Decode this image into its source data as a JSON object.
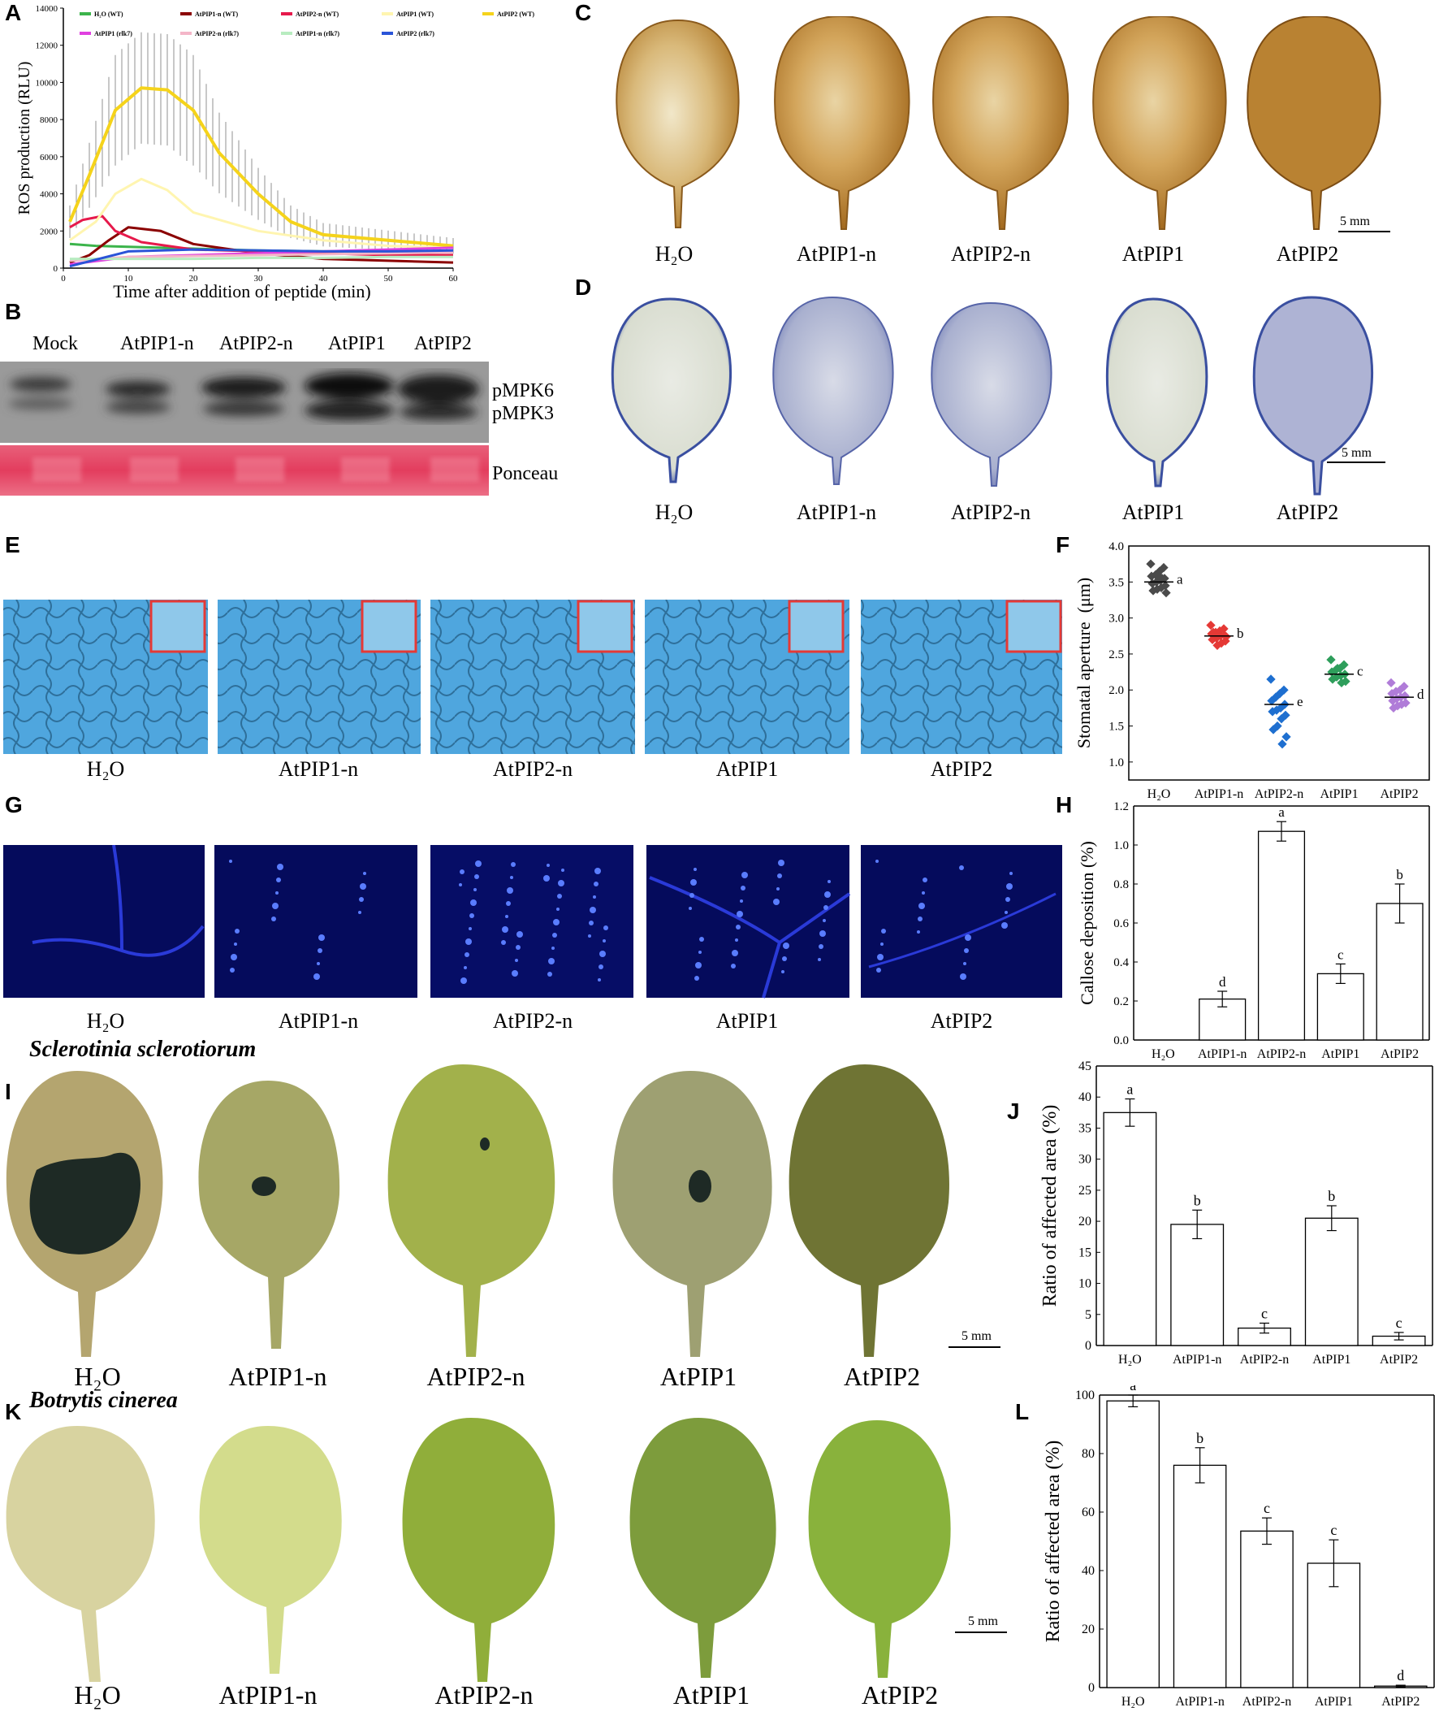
{
  "panels": {
    "A": "A",
    "B": "B",
    "C": "C",
    "D": "D",
    "E": "E",
    "F": "F",
    "G": "G",
    "H": "H",
    "I": "I",
    "J": "J",
    "K": "K",
    "L": "L"
  },
  "treatments": [
    "H₂O",
    "AtPIP1-n",
    "AtPIP2-n",
    "AtPIP1",
    "AtPIP2"
  ],
  "scale_bar": "5 mm",
  "blot": {
    "lanes": [
      "Mock",
      "AtPIP1-n",
      "AtPIP2-n",
      "AtPIP1",
      "AtPIP2"
    ],
    "band_labels": [
      "pMPK6",
      "pMPK3"
    ],
    "loading_label": "Ponceau"
  },
  "species": {
    "sclerotinia": "Sclerotinia  sclerotiorum",
    "botrytis": "Botrytis cinerea"
  },
  "colors": {
    "h2o_wt": "#3cb44b",
    "pip1n_wt": "#8b0000",
    "pip2n_wt": "#e6194b",
    "pip1_wt": "#fff5b0",
    "pip2_wt": "#f5d31b",
    "pip1_rlk7": "#e040e0",
    "pip2n_rlk7": "#f4b6c8",
    "pip1n_rlk7": "#b8ecc0",
    "pip2_rlk7": "#2a54d8",
    "microscope_blue": "#4fa6de",
    "fluor_blue": "#050b5c",
    "dab_brown": "#b07a2a",
    "trypan_blue": "#3a4fa0"
  },
  "chart_data": [
    {
      "id": "A",
      "type": "line",
      "ylabel": "ROS production (RLU)",
      "xlabel": "Time after addition of peptide (min)",
      "xlim": [
        0,
        60
      ],
      "ylim": [
        0,
        14000
      ],
      "xticks": [
        0,
        10,
        20,
        30,
        40,
        50,
        60
      ],
      "yticks": [
        0,
        2000,
        4000,
        6000,
        8000,
        10000,
        12000,
        14000
      ],
      "legend_placement": "top",
      "series": [
        {
          "name": "H₂O (WT)",
          "color": "#3cb44b",
          "x": [
            1,
            5,
            10,
            20,
            30,
            40,
            50,
            60
          ],
          "values": [
            1300,
            1200,
            1150,
            1050,
            950,
            900,
            900,
            850
          ]
        },
        {
          "name": "AtPIP1-n (WT)",
          "color": "#8b0000",
          "x": [
            1,
            4,
            7,
            10,
            15,
            20,
            30,
            40,
            50,
            60
          ],
          "values": [
            300,
            700,
            1500,
            2200,
            2000,
            1300,
            800,
            500,
            400,
            300
          ]
        },
        {
          "name": "AtPIP2-n (WT)",
          "color": "#e6194b",
          "x": [
            1,
            3,
            6,
            8,
            12,
            20,
            30,
            40,
            50,
            60
          ],
          "values": [
            2200,
            2600,
            2800,
            2000,
            1400,
            1000,
            900,
            800,
            700,
            700
          ]
        },
        {
          "name": "AtPIP1 (WT)",
          "color": "#fff5b0",
          "x": [
            1,
            5,
            8,
            12,
            16,
            20,
            30,
            40,
            50,
            60
          ],
          "values": [
            1500,
            2500,
            4000,
            4800,
            4200,
            3000,
            2000,
            1500,
            1200,
            1100
          ]
        },
        {
          "name": "AtPIP2 (WT)",
          "color": "#f5d31b",
          "x": [
            1,
            4,
            8,
            12,
            16,
            20,
            24,
            30,
            35,
            40,
            50,
            60
          ],
          "values": [
            2500,
            5000,
            8500,
            9700,
            9600,
            8500,
            6200,
            4000,
            2500,
            1800,
            1500,
            1200
          ]
        },
        {
          "name": "AtPIP1 (rlk7)",
          "color": "#e040e0",
          "x": [
            1,
            10,
            20,
            30,
            40,
            50,
            60
          ],
          "values": [
            200,
            600,
            700,
            800,
            900,
            1000,
            1100
          ]
        },
        {
          "name": "AtPIP2-n (rlk7)",
          "color": "#f4b6c8",
          "x": [
            1,
            10,
            20,
            30,
            40,
            50,
            60
          ],
          "values": [
            400,
            600,
            650,
            700,
            750,
            800,
            850
          ]
        },
        {
          "name": "AtPIP1-n (rlk7)",
          "color": "#b8ecc0",
          "x": [
            1,
            10,
            20,
            30,
            40,
            50,
            60
          ],
          "values": [
            500,
            500,
            500,
            550,
            550,
            600,
            600
          ]
        },
        {
          "name": "AtPIP2 (rlk7)",
          "color": "#2a54d8",
          "x": [
            1,
            10,
            20,
            30,
            40,
            50,
            60
          ],
          "values": [
            100,
            900,
            1000,
            950,
            900,
            900,
            950
          ]
        }
      ]
    },
    {
      "id": "F",
      "type": "scatter",
      "ylabel": "Stomatal aperture  (μm)",
      "categories": [
        "H₂O",
        "AtPIP1-n",
        "AtPIP2-n",
        "AtPIP1",
        "AtPIP2"
      ],
      "ylim": [
        0.75,
        4.0
      ],
      "yticks": [
        1.0,
        1.5,
        2.0,
        2.5,
        3.0,
        3.5,
        4.0
      ],
      "means": [
        3.5,
        2.75,
        1.8,
        2.22,
        1.9
      ],
      "letters": [
        "a",
        "b",
        "e",
        "c",
        "d"
      ],
      "colors": [
        "#4a4a4a",
        "#e53935",
        "#1e6fd0",
        "#2e9e5b",
        "#b07cd8"
      ],
      "points": [
        [
          3.75,
          3.7,
          3.65,
          3.6,
          3.58,
          3.55,
          3.52,
          3.5,
          3.48,
          3.45,
          3.42,
          3.4,
          3.38,
          3.35,
          3.55,
          3.6
        ],
        [
          2.9,
          2.85,
          2.82,
          2.8,
          2.78,
          2.76,
          2.75,
          2.72,
          2.7,
          2.68,
          2.65,
          2.62,
          2.8,
          2.74
        ],
        [
          2.15,
          2.0,
          1.95,
          1.9,
          1.85,
          1.8,
          1.75,
          1.72,
          1.7,
          1.65,
          1.6,
          1.5,
          1.45,
          1.35,
          1.25
        ],
        [
          2.42,
          2.35,
          2.3,
          2.28,
          2.25,
          2.22,
          2.2,
          2.18,
          2.15,
          2.12,
          2.1,
          2.3
        ],
        [
          2.1,
          2.05,
          2.0,
          1.98,
          1.95,
          1.92,
          1.9,
          1.88,
          1.85,
          1.82,
          1.8,
          1.78,
          1.75
        ]
      ]
    },
    {
      "id": "H",
      "type": "bar",
      "ylabel": "Callose deposition (%)",
      "categories": [
        "H₂O",
        "AtPIP1-n",
        "AtPIP2-n",
        "AtPIP1",
        "AtPIP2"
      ],
      "values": [
        0,
        0.21,
        1.07,
        0.34,
        0.7
      ],
      "errors": [
        0,
        0.04,
        0.05,
        0.05,
        0.1
      ],
      "letters": [
        "",
        "d",
        "a",
        "c",
        "b"
      ],
      "ylim": [
        0,
        1.2
      ],
      "yticks": [
        0.0,
        0.2,
        0.4,
        0.6,
        0.8,
        1.0,
        1.2
      ],
      "tick_decimals": 1
    },
    {
      "id": "J",
      "type": "bar",
      "ylabel": "Ratio of affected area (%)",
      "categories": [
        "H₂O",
        "AtPIP1-n",
        "AtPIP2-n",
        "AtPIP1",
        "AtPIP2"
      ],
      "values": [
        37.5,
        19.5,
        2.8,
        20.5,
        1.5
      ],
      "errors": [
        2.2,
        2.3,
        0.8,
        2.0,
        0.6
      ],
      "letters": [
        "a",
        "b",
        "c",
        "b",
        "c"
      ],
      "ylim": [
        0,
        45
      ],
      "yticks": [
        0,
        5,
        10,
        15,
        20,
        25,
        30,
        35,
        40,
        45
      ],
      "tick_decimals": 0
    },
    {
      "id": "L",
      "type": "bar",
      "ylabel": "Ratio of affected area (%)",
      "categories": [
        "H₂O",
        "AtPIP1-n",
        "AtPIP2-n",
        "AtPIP1",
        "AtPIP2"
      ],
      "values": [
        98,
        76,
        53.5,
        42.5,
        0.5
      ],
      "errors": [
        2,
        6,
        4.5,
        8,
        0.3
      ],
      "letters": [
        "a",
        "b",
        "c",
        "c",
        "d"
      ],
      "ylim": [
        0,
        100
      ],
      "yticks": [
        0,
        20,
        40,
        60,
        80,
        100
      ],
      "tick_decimals": 0
    }
  ]
}
